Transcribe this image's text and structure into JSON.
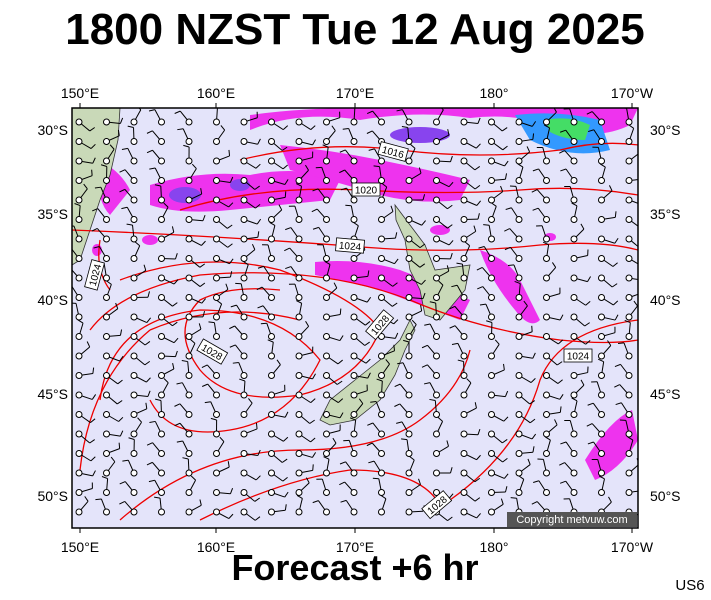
{
  "title": "1800 NZST Tue 12 Aug 2025",
  "subtitle": "Forecast +6 hr",
  "code": "US6",
  "copyright": "Copyright metvuw.com",
  "longitude_labels": [
    "150°E",
    "160°E",
    "170°E",
    "180°",
    "170°W"
  ],
  "latitude_labels": [
    "30°S",
    "35°S",
    "40°S",
    "45°S",
    "50°S"
  ],
  "isobar_labels": [
    "1016",
    "1020",
    "1024",
    "1024",
    "1024",
    "1028",
    "1028",
    "1028"
  ]
}
